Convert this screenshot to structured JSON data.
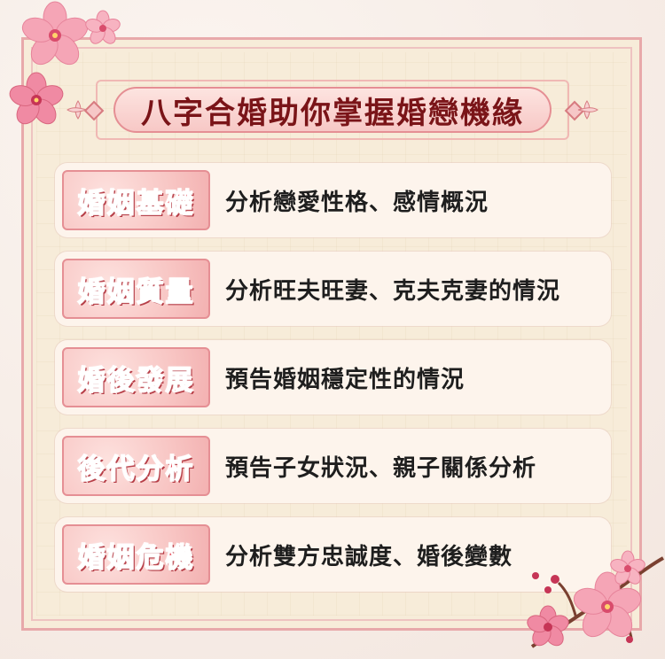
{
  "title": "八字合婚助你掌握婚戀機緣",
  "items": [
    {
      "label": "婚姻基礎",
      "desc": "分析戀愛性格、感情概況"
    },
    {
      "label": "婚姻質量",
      "desc": "分析旺夫旺妻、克夫克妻的情況"
    },
    {
      "label": "婚後發展",
      "desc": "預告婚姻穩定性的情況"
    },
    {
      "label": "後代分析",
      "desc": "預告子女狀況、親子關係分析"
    },
    {
      "label": "婚姻危機",
      "desc": "分析雙方忠誠度、婚後變數"
    }
  ],
  "colors": {
    "accent": "#e58f94",
    "title": "#7a1418",
    "label": "#e83a4a"
  },
  "decorations": [
    "cherry-blossom-icon",
    "branch-icon"
  ]
}
